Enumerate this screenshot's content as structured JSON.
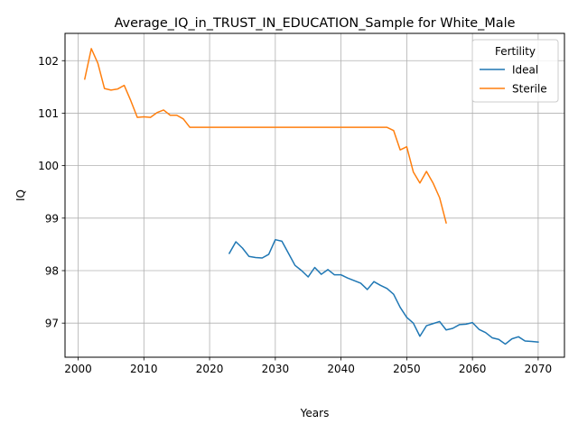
{
  "chart_data": {
    "type": "line",
    "title": "Average_IQ_in_TRUST_IN_EDUCATION_Sample for White_Male",
    "xlabel": "Years",
    "ylabel": "IQ",
    "xlim": [
      1998,
      2074
    ],
    "ylim": [
      96.35,
      102.52
    ],
    "xticks": [
      2000,
      2010,
      2020,
      2030,
      2040,
      2050,
      2060,
      2070
    ],
    "yticks": [
      97,
      98,
      99,
      100,
      101,
      102
    ],
    "grid": true,
    "legend": {
      "title": "Fertility",
      "placement": "top-right"
    },
    "series": [
      {
        "name": "Ideal",
        "color": "#1f77b4",
        "x": [
          2023,
          2024,
          2025,
          2026,
          2027,
          2028,
          2029,
          2030,
          2031,
          2032,
          2033,
          2034,
          2035,
          2036,
          2037,
          2038,
          2039,
          2040,
          2041,
          2042,
          2043,
          2044,
          2045,
          2046,
          2047,
          2048,
          2049,
          2050,
          2051,
          2052,
          2053,
          2054,
          2055,
          2056,
          2057,
          2058,
          2059,
          2060,
          2061,
          2062,
          2063,
          2064,
          2065,
          2066,
          2067,
          2068,
          2069,
          2070
        ],
        "y": [
          98.33,
          98.55,
          98.43,
          98.27,
          98.25,
          98.24,
          98.31,
          98.59,
          98.56,
          98.33,
          98.1,
          98.0,
          97.88,
          98.06,
          97.93,
          98.02,
          97.92,
          97.92,
          97.86,
          97.81,
          97.76,
          97.64,
          97.79,
          97.72,
          97.66,
          97.55,
          97.3,
          97.11,
          97.0,
          96.75,
          96.95,
          96.99,
          97.03,
          96.87,
          96.9,
          96.97,
          96.98,
          97.01,
          96.88,
          96.82,
          96.72,
          96.69,
          96.6,
          96.7,
          96.74,
          96.66,
          96.65,
          96.64
        ]
      },
      {
        "name": "Sterile",
        "color": "#ff7f0e",
        "x": [
          2001,
          2002,
          2003,
          2004,
          2005,
          2006,
          2007,
          2008,
          2009,
          2010,
          2011,
          2012,
          2013,
          2014,
          2015,
          2016,
          2017,
          2018,
          2019,
          2020,
          2021,
          2022,
          2023,
          2024,
          2025,
          2026,
          2027,
          2028,
          2029,
          2030,
          2031,
          2032,
          2033,
          2034,
          2035,
          2036,
          2037,
          2038,
          2039,
          2040,
          2041,
          2042,
          2043,
          2044,
          2045,
          2046,
          2047,
          2048,
          2049,
          2050,
          2051,
          2052,
          2053,
          2054,
          2055,
          2056
        ],
        "y": [
          101.65,
          102.23,
          101.95,
          101.47,
          101.44,
          101.46,
          101.53,
          101.24,
          100.92,
          100.93,
          100.92,
          101.01,
          101.06,
          100.96,
          100.96,
          100.89,
          100.73,
          100.73,
          100.73,
          100.73,
          100.73,
          100.73,
          100.73,
          100.73,
          100.73,
          100.73,
          100.73,
          100.73,
          100.73,
          100.73,
          100.73,
          100.73,
          100.73,
          100.73,
          100.73,
          100.73,
          100.73,
          100.73,
          100.73,
          100.73,
          100.73,
          100.73,
          100.73,
          100.73,
          100.73,
          100.73,
          100.73,
          100.67,
          100.3,
          100.36,
          99.88,
          99.67,
          99.89,
          99.67,
          99.39,
          98.91
        ]
      }
    ]
  }
}
